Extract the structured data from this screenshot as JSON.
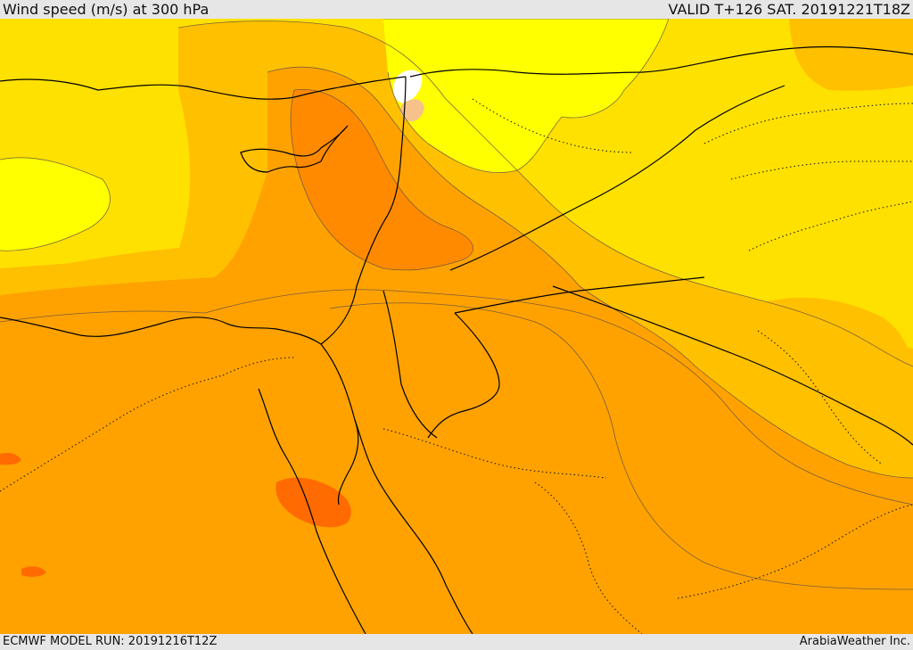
{
  "header": {
    "title": "Wind speed (m/s) at 300 hPa",
    "valid": "VALID T+126 SAT. 20191221T18Z"
  },
  "footer": {
    "run": "ECMWF MODEL RUN: 20191216T12Z",
    "credit": "ArabiaWeather Inc."
  },
  "palette": {
    "lightest": "#ffff00",
    "yellow": "#ffe100",
    "gold": "#ffc000",
    "amber": "#ffa200",
    "orange": "#ff8a00",
    "deep_orange": "#ff6b00",
    "red_orange": "#ff5c00",
    "white_patch": "#ffffff",
    "peach_patch": "#f6c28a"
  }
}
